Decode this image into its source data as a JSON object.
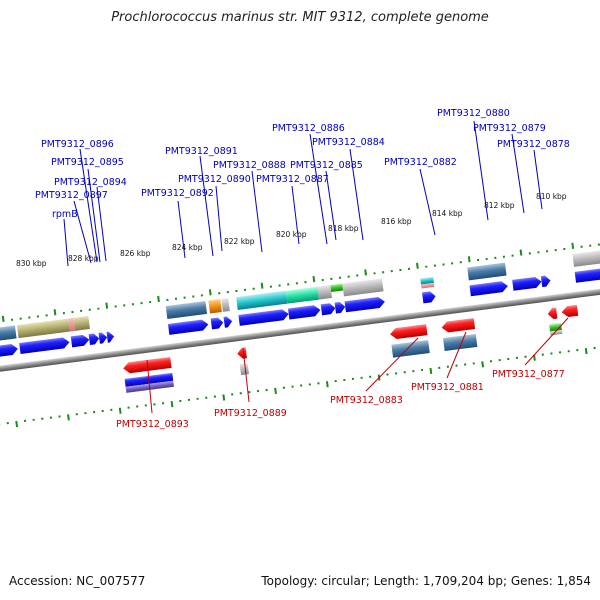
{
  "title": "Prochlorococcus marinus str. MIT 9312, complete genome",
  "footer": {
    "accession": "Accession: NC_007577",
    "summary": "Topology: circular; Length: 1,709,204 bp; Genes: 1,854"
  },
  "colors": {
    "forward_label": "#0000c0",
    "reverse_label": "#c00000",
    "tick": "#1a8a1a",
    "backbone": "#888888",
    "cds_forward": "#1010ee",
    "cds_reverse": "#ee1010"
  },
  "axis": {
    "unit": "kbp",
    "ticks": [
      {
        "kbp": 830,
        "label": "830 kbp"
      },
      {
        "kbp": 828,
        "label": "828 kbp"
      },
      {
        "kbp": 826,
        "label": "826 kbp"
      },
      {
        "kbp": 824,
        "label": "824 kbp"
      },
      {
        "kbp": 822,
        "label": "822 kbp"
      },
      {
        "kbp": 820,
        "label": "820 kbp"
      },
      {
        "kbp": 818,
        "label": "818 kbp"
      },
      {
        "kbp": 816,
        "label": "816 kbp"
      },
      {
        "kbp": 814,
        "label": "814 kbp"
      },
      {
        "kbp": 812,
        "label": "812 kbp"
      },
      {
        "kbp": 810,
        "label": "810 kbp"
      }
    ]
  },
  "genes": {
    "forward": [
      "PMT9312_0896",
      "PMT9312_0895",
      "PMT9312_0894",
      "PMT9312_0897",
      "rpmB",
      "PMT9312_0891",
      "PMT9312_0892",
      "PMT9312_0890",
      "PMT9312_0888",
      "PMT9312_0887",
      "PMT9312_0886",
      "PMT9312_0885",
      "PMT9312_0884",
      "PMT9312_0882",
      "PMT9312_0880",
      "PMT9312_0879",
      "PMT9312_0878"
    ],
    "reverse": [
      "PMT9312_0893",
      "PMT9312_0889",
      "PMT9312_0883",
      "PMT9312_0881",
      "PMT9312_0877"
    ]
  }
}
